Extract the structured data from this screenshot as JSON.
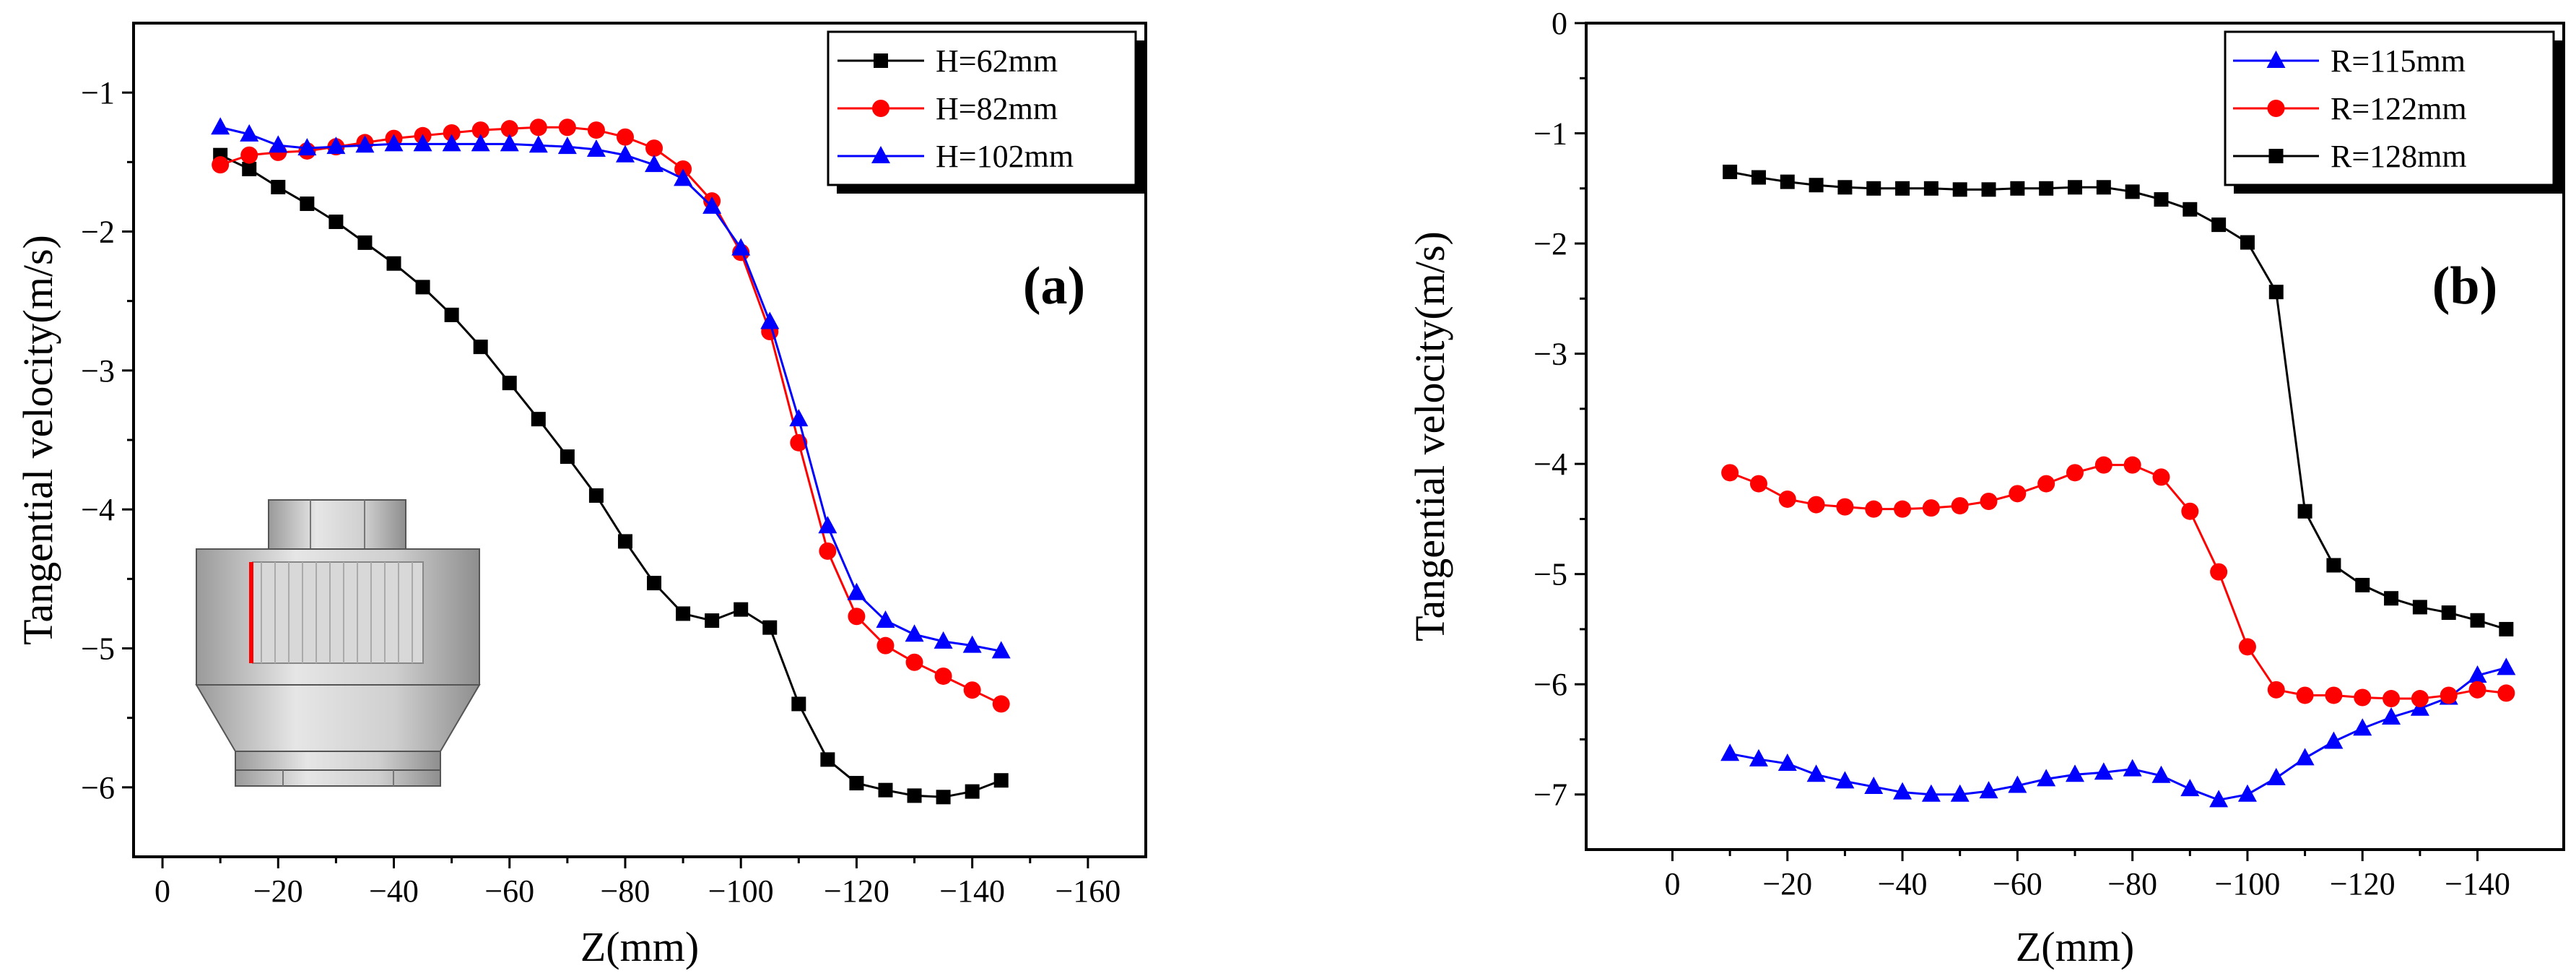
{
  "chart_data": [
    {
      "type": "line",
      "panel_label": "(a)",
      "xlabel": "Z(mm)",
      "ylabel": "Tangential velocity(m/s)",
      "xlim": [
        5,
        -170
      ],
      "ylim": [
        -6.5,
        -0.5
      ],
      "xticks": [
        0,
        -20,
        -40,
        -60,
        -80,
        -100,
        -120,
        -140,
        -160
      ],
      "xtick_labels": [
        "0",
        "−20",
        "−40",
        "−60",
        "−80",
        "−100",
        "−120",
        "−140",
        "−160"
      ],
      "yticks": [
        -1,
        -2,
        -3,
        -4,
        -5,
        -6
      ],
      "ytick_labels": [
        "−1",
        "−2",
        "−3",
        "−4",
        "−5",
        "−6"
      ],
      "legend_position": "top-right",
      "x": [
        -10,
        -15,
        -20,
        -25,
        -30,
        -35,
        -40,
        -45,
        -50,
        -55,
        -60,
        -65,
        -70,
        -75,
        -80,
        -85,
        -90,
        -95,
        -100,
        -105,
        -110,
        -115,
        -120,
        -125,
        -130,
        -135,
        -140,
        -145
      ],
      "series": [
        {
          "name": "H=62mm",
          "color": "#000000",
          "marker": "square",
          "values": [
            -1.45,
            -1.55,
            -1.68,
            -1.8,
            -1.93,
            -2.08,
            -2.23,
            -2.4,
            -2.6,
            -2.83,
            -3.09,
            -3.35,
            -3.62,
            -3.9,
            -4.23,
            -4.53,
            -4.75,
            -4.8,
            -4.72,
            -4.85,
            -5.4,
            -5.8,
            -5.97,
            -6.02,
            -6.06,
            -6.07,
            -6.03,
            -5.95
          ]
        },
        {
          "name": "H=82mm",
          "color": "#ff0000",
          "marker": "circle",
          "values": [
            -1.52,
            -1.45,
            -1.43,
            -1.42,
            -1.39,
            -1.36,
            -1.33,
            -1.31,
            -1.29,
            -1.27,
            -1.26,
            -1.25,
            -1.25,
            -1.27,
            -1.32,
            -1.4,
            -1.55,
            -1.78,
            -2.15,
            -2.72,
            -3.52,
            -4.3,
            -4.77,
            -4.98,
            -5.1,
            -5.2,
            -5.3,
            -5.4
          ]
        },
        {
          "name": "H=102mm",
          "color": "#0000ff",
          "marker": "triangle",
          "values": [
            -1.25,
            -1.3,
            -1.38,
            -1.4,
            -1.39,
            -1.38,
            -1.37,
            -1.37,
            -1.37,
            -1.37,
            -1.37,
            -1.38,
            -1.39,
            -1.41,
            -1.45,
            -1.52,
            -1.62,
            -1.82,
            -2.12,
            -2.65,
            -3.35,
            -4.12,
            -4.6,
            -4.8,
            -4.9,
            -4.95,
            -4.98,
            -5.02
          ]
        }
      ],
      "inset": {
        "description_icon": "cyclone-model-icon",
        "line_color": "#ff0000"
      }
    },
    {
      "type": "line",
      "panel_label": "(b)",
      "xlabel": "Z(mm)",
      "ylabel": "Tangential velocity(m/s)",
      "xlim": [
        15,
        -155
      ],
      "ylim": [
        -7.5,
        0
      ],
      "xticks": [
        0,
        -20,
        -40,
        -60,
        -80,
        -100,
        -120,
        -140
      ],
      "xtick_labels": [
        "0",
        "−20",
        "−40",
        "−60",
        "−80",
        "−100",
        "−120",
        "−140"
      ],
      "yticks": [
        0,
        -1,
        -2,
        -3,
        -4,
        -5,
        -6,
        -7
      ],
      "ytick_labels": [
        "0",
        "−1",
        "−2",
        "−3",
        "−4",
        "−5",
        "−6",
        "−7"
      ],
      "legend_position": "top-right",
      "x": [
        -10,
        -15,
        -20,
        -25,
        -30,
        -35,
        -40,
        -45,
        -50,
        -55,
        -60,
        -65,
        -70,
        -75,
        -80,
        -85,
        -90,
        -95,
        -100,
        -105,
        -110,
        -115,
        -120,
        -125,
        -130,
        -135,
        -140,
        -145
      ],
      "series": [
        {
          "name": "R=115mm",
          "color": "#0000ff",
          "marker": "triangle",
          "values": [
            -6.63,
            -6.68,
            -6.72,
            -6.82,
            -6.88,
            -6.93,
            -6.98,
            -7.0,
            -7.0,
            -6.97,
            -6.92,
            -6.86,
            -6.82,
            -6.8,
            -6.77,
            -6.83,
            -6.95,
            -7.05,
            -7.0,
            -6.85,
            -6.67,
            -6.52,
            -6.4,
            -6.3,
            -6.22,
            -6.12,
            -5.92,
            -5.85
          ]
        },
        {
          "name": "R=122mm",
          "color": "#ff0000",
          "marker": "circle",
          "values": [
            -4.08,
            -4.18,
            -4.32,
            -4.37,
            -4.39,
            -4.41,
            -4.41,
            -4.4,
            -4.38,
            -4.34,
            -4.27,
            -4.18,
            -4.08,
            -4.01,
            -4.01,
            -4.12,
            -4.43,
            -4.98,
            -5.66,
            -6.05,
            -6.1,
            -6.1,
            -6.12,
            -6.13,
            -6.13,
            -6.1,
            -6.05,
            -6.08
          ]
        },
        {
          "name": "R=128mm",
          "color": "#000000",
          "marker": "square",
          "values": [
            -1.35,
            -1.4,
            -1.44,
            -1.47,
            -1.49,
            -1.5,
            -1.5,
            -1.5,
            -1.51,
            -1.51,
            -1.5,
            -1.5,
            -1.49,
            -1.49,
            -1.53,
            -1.6,
            -1.69,
            -1.83,
            -1.99,
            -2.44,
            -4.43,
            -4.92,
            -5.1,
            -5.22,
            -5.3,
            -5.35,
            -5.42,
            -5.5
          ]
        }
      ]
    }
  ]
}
